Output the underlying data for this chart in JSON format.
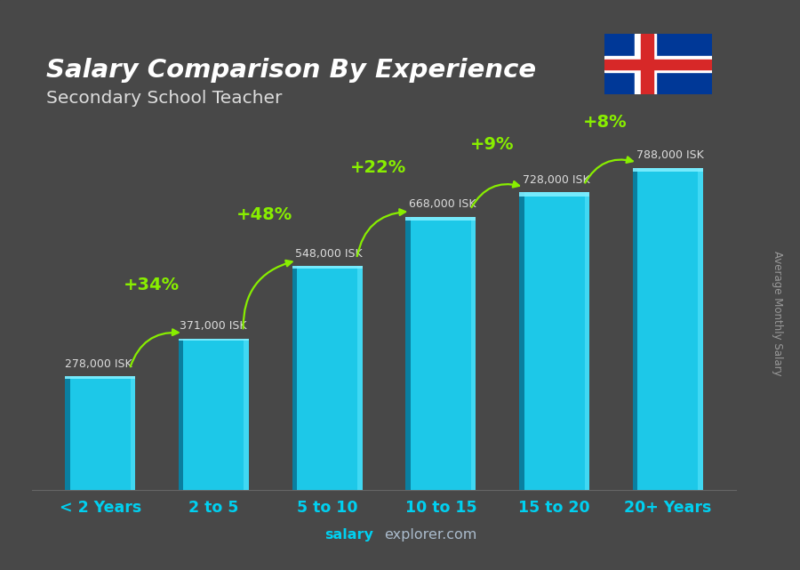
{
  "title": "Salary Comparison By Experience",
  "subtitle": "Secondary School Teacher",
  "categories": [
    "< 2 Years",
    "2 to 5",
    "5 to 10",
    "10 to 15",
    "15 to 20",
    "20+ Years"
  ],
  "values": [
    278000,
    371000,
    548000,
    668000,
    728000,
    788000
  ],
  "labels": [
    "278,000 ISK",
    "371,000 ISK",
    "548,000 ISK",
    "668,000 ISK",
    "728,000 ISK",
    "788,000 ISK"
  ],
  "pct_labels": [
    "+34%",
    "+48%",
    "+22%",
    "+9%",
    "+8%"
  ],
  "bar_color_face": "#1dc8e8",
  "bar_color_left": "#0a7fa0",
  "bar_color_right": "#50e0f8",
  "bar_color_top": "#80eeff",
  "bg_color": "#3a3a3a",
  "title_color": "#ffffff",
  "label_color": "#cccccc",
  "pct_color": "#88ee00",
  "xlabel_color": "#00d0f0",
  "ylabel_text": "Average Monthly Salary",
  "footer_salary": "salary",
  "footer_rest": "explorer.com",
  "ylim": [
    0,
    920000
  ],
  "flag_blue": "#003897",
  "flag_white": "#ffffff",
  "flag_red": "#d72828"
}
